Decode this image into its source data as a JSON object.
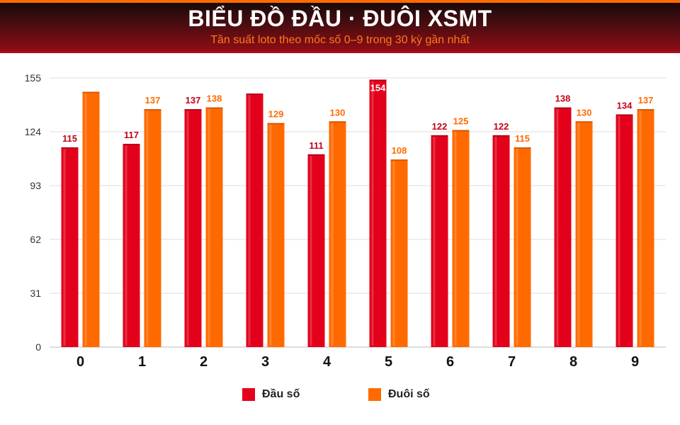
{
  "header": {
    "title": "BIỂU ĐỒ ĐẦU · ĐUÔI XSMT",
    "subtitle": "Tần suất loto theo mốc số 0–9 trong 30 kỳ gần nhất"
  },
  "colors": {
    "dau": "#e3001b",
    "duoi": "#ff6a00",
    "grid": "#dddddd",
    "tick": "#333333"
  },
  "chart_data": {
    "type": "bar",
    "title": "BIỂU ĐỒ ĐẦU · ĐUÔI XSMT",
    "categories": [
      "0",
      "1",
      "2",
      "3",
      "4",
      "5",
      "6",
      "7",
      "8",
      "9"
    ],
    "yticks": [
      0,
      31,
      62,
      93,
      124,
      155
    ],
    "ylim": [
      0,
      155
    ],
    "grid": true,
    "legend_position": "bottom",
    "series": [
      {
        "name": "Đầu số",
        "values": [
          115,
          117,
          137,
          146,
          111,
          154,
          122,
          122,
          138,
          134
        ],
        "labels": [
          "115",
          "117",
          "137",
          "",
          "111",
          "154",
          "122",
          "122",
          "138",
          "134"
        ]
      },
      {
        "name": "Đuôi số",
        "values": [
          147,
          137,
          138,
          129,
          130,
          108,
          125,
          115,
          130,
          137
        ],
        "labels": [
          "",
          "137",
          "138",
          "129",
          "130",
          "108",
          "125",
          "115",
          "130",
          "137"
        ]
      }
    ]
  }
}
